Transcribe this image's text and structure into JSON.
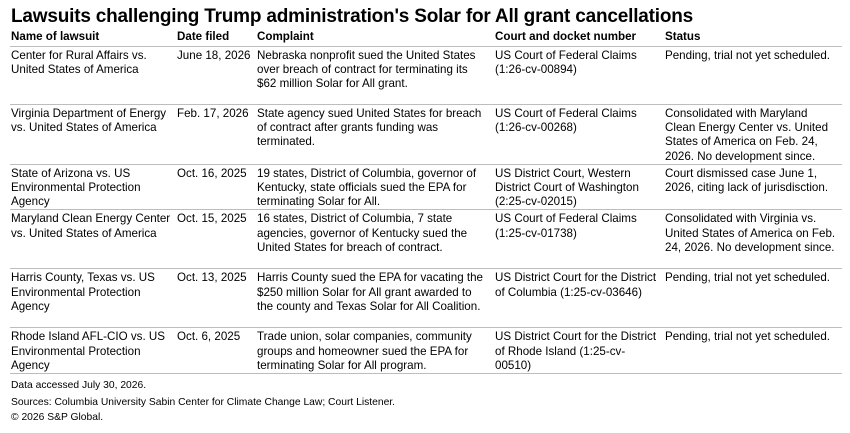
{
  "title": "Lawsuits challenging Trump administration's Solar for All grant cancellations",
  "columns": [
    "Name of lawsuit",
    "Date filed",
    "Complaint",
    "Court and docket number",
    "Status"
  ],
  "rows": [
    {
      "name": "Center for Rural Affairs vs. United States of America",
      "date": "June 18, 2026",
      "complaint": "Nebraska nonprofit  sued the United States over breach of contract for terminating its $62 million Solar for All grant.",
      "court": "US Court of Federal Claims (1:26-cv-00894)",
      "status": "Pending, trial not yet scheduled."
    },
    {
      "name": "Virginia Department of Energy vs. United States of America",
      "date": "Feb. 17, 2026",
      "complaint": "State agency sued United States for breach of contract after grants funding was terminated.",
      "court": "US Court of Federal Claims (1:26-cv-00268)",
      "status": "Consolidated with Maryland Clean Energy Center vs. United States of America on Feb. 24, 2026. No development since."
    },
    {
      "name": "State of Arizona vs. US Environmental Protection Agency",
      "date": "Oct. 16, 2025",
      "complaint": "19 states, District of Columbia, governor of Kentucky, state officials sued the EPA for terminating Solar for All.",
      "court": "US District Court, Western District Court of Washington (2:25-cv-02015)",
      "status": "Court dismissed case June 1, 2026, citing lack of jurisdisction."
    },
    {
      "name": "Maryland Clean Energy Center vs. United States of America",
      "date": "Oct. 15, 2025",
      "complaint": "16 states, District of Columbia, 7 state agencies, governor of Kentucky sued the United States for breach of contract.",
      "court": "US Court of Federal Claims (1:25-cv-01738)",
      "status": "Consolidated with Virginia vs. United States of America on Feb. 24, 2026. No development since."
    },
    {
      "name": "Harris County, Texas vs. US Environmental Protection Agency",
      "date": "Oct. 13, 2025",
      "complaint": "Harris County sued the EPA for vacating the $250 million Solar for All grant awarded to the county and Texas Solar for All Coalition.",
      "court": "US District Court for the District of Columbia (1:25-cv-03646)",
      "status": "Pending, trial not yet scheduled."
    },
    {
      "name": "Rhode Island AFL-CIO vs. US Environmental Protection Agency",
      "date": "Oct. 6, 2025",
      "complaint": "Trade union, solar companies, community groups and homeowner sued the EPA for terminating Solar for All program.",
      "court": "US District Court for the District of Rhode Island (1:25-cv-00510)",
      "status": "Pending, trial not yet scheduled."
    }
  ],
  "footer": {
    "accessed": "Data accessed July 30, 2026.",
    "sources": "Sources: Columbia University Sabin Center for Climate Change Law; Court Listener.",
    "copyright": "© 2026 S&P Global."
  }
}
